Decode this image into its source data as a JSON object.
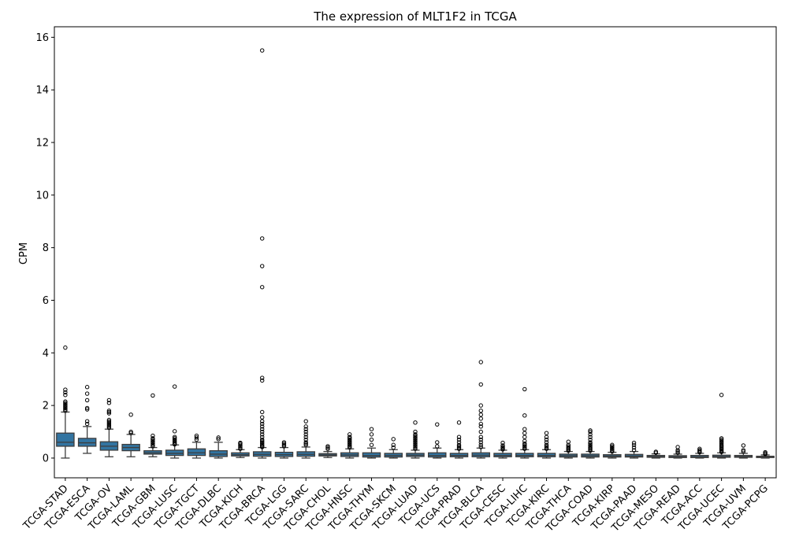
{
  "chart_data": {
    "type": "box",
    "title": "The expression of MLT1F2 in TCGA",
    "xlabel": "",
    "ylabel": "CPM",
    "ylim": [
      -0.75,
      16.4
    ],
    "yticks": [
      0,
      2,
      4,
      6,
      8,
      10,
      12,
      14,
      16
    ],
    "grid": false,
    "box_color": "#3274a1",
    "categories": [
      "TCGA-STAD",
      "TCGA-ESCA",
      "TCGA-OV",
      "TCGA-LAML",
      "TCGA-GBM",
      "TCGA-LUSC",
      "TCGA-TGCT",
      "TCGA-DLBC",
      "TCGA-KICH",
      "TCGA-BRCA",
      "TCGA-LGG",
      "TCGA-SARC",
      "TCGA-CHOL",
      "TCGA-HNSC",
      "TCGA-THYM",
      "TCGA-SKCM",
      "TCGA-LUAD",
      "TCGA-UCS",
      "TCGA-PRAD",
      "TCGA-BLCA",
      "TCGA-CESC",
      "TCGA-LIHC",
      "TCGA-KIRC",
      "TCGA-THCA",
      "TCGA-COAD",
      "TCGA-KIRP",
      "TCGA-PAAD",
      "TCGA-MESO",
      "TCGA-READ",
      "TCGA-ACC",
      "TCGA-UCEC",
      "TCGA-UVM",
      "TCGA-PCPG"
    ],
    "boxes": [
      {
        "whislo": 0.0,
        "q1": 0.45,
        "med": 0.6,
        "q3": 0.95,
        "whishi": 1.75,
        "fliers": [
          1.8,
          1.85,
          1.9,
          1.95,
          2.0,
          2.05,
          2.1,
          2.15,
          2.4,
          2.5,
          2.6,
          4.2
        ]
      },
      {
        "whislo": 0.18,
        "q1": 0.45,
        "med": 0.58,
        "q3": 0.75,
        "whishi": 1.2,
        "fliers": [
          1.3,
          1.4,
          1.85,
          1.9,
          2.2,
          2.45,
          2.7
        ]
      },
      {
        "whislo": 0.05,
        "q1": 0.3,
        "med": 0.45,
        "q3": 0.62,
        "whishi": 1.1,
        "fliers": [
          1.15,
          1.2,
          1.25,
          1.3,
          1.35,
          1.4,
          1.45,
          1.7,
          1.75,
          1.8,
          2.1,
          2.2
        ]
      },
      {
        "whislo": 0.05,
        "q1": 0.28,
        "med": 0.4,
        "q3": 0.52,
        "whishi": 0.9,
        "fliers": [
          0.95,
          1.0,
          1.65
        ]
      },
      {
        "whislo": 0.05,
        "q1": 0.15,
        "med": 0.2,
        "q3": 0.28,
        "whishi": 0.4,
        "fliers": [
          0.45,
          0.5,
          0.55,
          0.6,
          0.65,
          0.7,
          0.75,
          0.85,
          2.38
        ]
      },
      {
        "whislo": 0.0,
        "q1": 0.1,
        "med": 0.18,
        "q3": 0.3,
        "whishi": 0.5,
        "fliers": [
          0.52,
          0.55,
          0.6,
          0.65,
          0.7,
          0.75,
          0.8,
          1.02,
          2.72
        ]
      },
      {
        "whislo": 0.0,
        "q1": 0.1,
        "med": 0.2,
        "q3": 0.35,
        "whishi": 0.6,
        "fliers": [
          0.7,
          0.78,
          0.85
        ]
      },
      {
        "whislo": 0.0,
        "q1": 0.06,
        "med": 0.15,
        "q3": 0.28,
        "whishi": 0.6,
        "fliers": [
          0.72,
          0.78
        ]
      },
      {
        "whislo": 0.02,
        "q1": 0.08,
        "med": 0.13,
        "q3": 0.2,
        "whishi": 0.32,
        "fliers": [
          0.35,
          0.4,
          0.45,
          0.5,
          0.55,
          0.58
        ]
      },
      {
        "whislo": 0.0,
        "q1": 0.07,
        "med": 0.14,
        "q3": 0.24,
        "whishi": 0.4,
        "fliers": [
          0.42,
          0.45,
          0.5,
          0.55,
          0.6,
          0.65,
          0.7,
          0.8,
          0.9,
          1.0,
          1.1,
          1.2,
          1.3,
          1.4,
          1.55,
          1.75,
          2.95,
          3.05,
          6.5,
          7.3,
          8.35,
          15.5
        ]
      },
      {
        "whislo": 0.0,
        "q1": 0.06,
        "med": 0.13,
        "q3": 0.22,
        "whishi": 0.4,
        "fliers": [
          0.45,
          0.5,
          0.55,
          0.6
        ]
      },
      {
        "whislo": 0.0,
        "q1": 0.07,
        "med": 0.14,
        "q3": 0.24,
        "whishi": 0.42,
        "fliers": [
          0.5,
          0.55,
          0.6,
          0.7,
          0.8,
          0.9,
          1.0,
          1.1,
          1.2,
          1.4
        ]
      },
      {
        "whislo": 0.02,
        "q1": 0.08,
        "med": 0.12,
        "q3": 0.17,
        "whishi": 0.25,
        "fliers": [
          0.35,
          0.4,
          0.45
        ]
      },
      {
        "whislo": 0.0,
        "q1": 0.06,
        "med": 0.12,
        "q3": 0.2,
        "whishi": 0.35,
        "fliers": [
          0.4,
          0.45,
          0.5,
          0.55,
          0.6,
          0.65,
          0.7,
          0.75,
          0.8,
          0.9
        ]
      },
      {
        "whislo": 0.0,
        "q1": 0.04,
        "med": 0.1,
        "q3": 0.2,
        "whishi": 0.38,
        "fliers": [
          0.5,
          0.7,
          0.9,
          1.1
        ]
      },
      {
        "whislo": 0.0,
        "q1": 0.04,
        "med": 0.1,
        "q3": 0.18,
        "whishi": 0.32,
        "fliers": [
          0.4,
          0.5,
          0.72
        ]
      },
      {
        "whislo": 0.0,
        "q1": 0.06,
        "med": 0.11,
        "q3": 0.18,
        "whishi": 0.3,
        "fliers": [
          0.35,
          0.4,
          0.45,
          0.5,
          0.55,
          0.6,
          0.65,
          0.7,
          0.75,
          0.8,
          0.85,
          0.9,
          1.0,
          1.35
        ]
      },
      {
        "whislo": 0.0,
        "q1": 0.04,
        "med": 0.1,
        "q3": 0.2,
        "whishi": 0.38,
        "fliers": [
          0.45,
          0.6,
          1.28
        ]
      },
      {
        "whislo": 0.0,
        "q1": 0.05,
        "med": 0.1,
        "q3": 0.18,
        "whishi": 0.32,
        "fliers": [
          0.35,
          0.4,
          0.45,
          0.5,
          0.6,
          0.7,
          0.8,
          1.35
        ]
      },
      {
        "whislo": 0.0,
        "q1": 0.05,
        "med": 0.11,
        "q3": 0.2,
        "whishi": 0.38,
        "fliers": [
          0.42,
          0.5,
          0.6,
          0.7,
          0.8,
          1.0,
          1.2,
          1.3,
          1.5,
          1.65,
          1.8,
          2.0,
          2.8,
          3.65
        ]
      },
      {
        "whislo": 0.0,
        "q1": 0.05,
        "med": 0.1,
        "q3": 0.18,
        "whishi": 0.3,
        "fliers": [
          0.33,
          0.38,
          0.42,
          0.48,
          0.58
        ]
      },
      {
        "whislo": 0.0,
        "q1": 0.05,
        "med": 0.1,
        "q3": 0.18,
        "whishi": 0.32,
        "fliers": [
          0.35,
          0.4,
          0.45,
          0.5,
          0.55,
          0.65,
          0.8,
          0.95,
          1.1,
          1.62,
          2.62
        ]
      },
      {
        "whislo": 0.0,
        "q1": 0.05,
        "med": 0.1,
        "q3": 0.18,
        "whishi": 0.32,
        "fliers": [
          0.35,
          0.4,
          0.45,
          0.5,
          0.6,
          0.7,
          0.8,
          0.95
        ]
      },
      {
        "whislo": 0.0,
        "q1": 0.04,
        "med": 0.09,
        "q3": 0.15,
        "whishi": 0.25,
        "fliers": [
          0.28,
          0.32,
          0.36,
          0.4,
          0.45,
          0.5,
          0.62
        ]
      },
      {
        "whislo": 0.0,
        "q1": 0.04,
        "med": 0.09,
        "q3": 0.15,
        "whishi": 0.25,
        "fliers": [
          0.28,
          0.32,
          0.36,
          0.4,
          0.45,
          0.5,
          0.55,
          0.6,
          0.7,
          0.8,
          0.9,
          1.0,
          1.05
        ]
      },
      {
        "whislo": 0.0,
        "q1": 0.04,
        "med": 0.08,
        "q3": 0.13,
        "whishi": 0.22,
        "fliers": [
          0.25,
          0.3,
          0.35,
          0.4,
          0.45,
          0.5
        ]
      },
      {
        "whislo": 0.0,
        "q1": 0.04,
        "med": 0.08,
        "q3": 0.14,
        "whishi": 0.25,
        "fliers": [
          0.3,
          0.4,
          0.5,
          0.58
        ]
      },
      {
        "whislo": 0.0,
        "q1": 0.03,
        "med": 0.06,
        "q3": 0.1,
        "whishi": 0.16,
        "fliers": [
          0.2,
          0.24
        ]
      },
      {
        "whislo": 0.0,
        "q1": 0.02,
        "med": 0.05,
        "q3": 0.09,
        "whishi": 0.15,
        "fliers": [
          0.2,
          0.25,
          0.3,
          0.42
        ]
      },
      {
        "whislo": 0.0,
        "q1": 0.02,
        "med": 0.05,
        "q3": 0.1,
        "whishi": 0.18,
        "fliers": [
          0.22,
          0.26,
          0.3,
          0.35
        ]
      },
      {
        "whislo": 0.0,
        "q1": 0.03,
        "med": 0.06,
        "q3": 0.11,
        "whishi": 0.2,
        "fliers": [
          0.23,
          0.26,
          0.3,
          0.34,
          0.38,
          0.42,
          0.46,
          0.5,
          0.55,
          0.6,
          0.65,
          0.7,
          0.75,
          2.4
        ]
      },
      {
        "whislo": 0.0,
        "q1": 0.03,
        "med": 0.06,
        "q3": 0.1,
        "whishi": 0.18,
        "fliers": [
          0.25,
          0.3,
          0.48
        ]
      },
      {
        "whislo": 0.0,
        "q1": 0.02,
        "med": 0.04,
        "q3": 0.07,
        "whishi": 0.12,
        "fliers": [
          0.15,
          0.18,
          0.22
        ]
      }
    ]
  }
}
